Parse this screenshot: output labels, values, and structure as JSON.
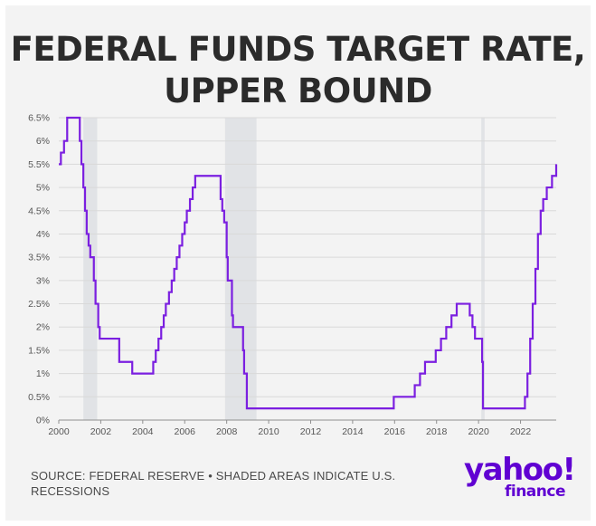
{
  "title_lines": [
    "FEDERAL FUNDS TARGET RATE,",
    "UPPER BOUND"
  ],
  "source_text": "SOURCE: FEDERAL RESERVE • SHADED AREAS INDICATE U.S. RECESSIONS",
  "logo": {
    "word": "yahoo!",
    "sub": "finance"
  },
  "colors": {
    "line": "#7b1fe0",
    "recession": "#e1e3e6",
    "grid": "#d9d9d9",
    "logo": "#6001d2",
    "background": "#f3f3f3"
  },
  "chart_data": {
    "type": "line",
    "title": "FEDERAL FUNDS TARGET RATE, UPPER BOUND",
    "xlabel": "",
    "ylabel": "",
    "xlim": [
      2000,
      2023.7
    ],
    "ylim": [
      0,
      6.5
    ],
    "grid": "horizontal",
    "legend": "none",
    "step": true,
    "x_ticks": [
      2000,
      2002,
      2004,
      2006,
      2008,
      2010,
      2012,
      2014,
      2016,
      2018,
      2020,
      2022
    ],
    "x_tick_labels": [
      "2000",
      "2002",
      "2004",
      "2006",
      "2008",
      "2010",
      "2012",
      "2014",
      "2016",
      "2018",
      "2020",
      "2022"
    ],
    "y_ticks": [
      0,
      0.5,
      1,
      1.5,
      2,
      2.5,
      3,
      3.5,
      4,
      4.5,
      5,
      5.5,
      6,
      6.5
    ],
    "y_tick_labels": [
      "0%",
      "0.5%",
      "1%",
      "1.5%",
      "2%",
      "2.5%",
      "3%",
      "3.5%",
      "4%",
      "4.5%",
      "5%",
      "5.5%",
      "6%",
      "6.5%"
    ],
    "recessions": [
      [
        2001.17,
        2001.83
      ],
      [
        2007.92,
        2009.42
      ],
      [
        2020.13,
        2020.29
      ]
    ],
    "series": [
      {
        "x": [
          2000.0,
          2000.1,
          2000.25,
          2000.4,
          2001.0,
          2001.08,
          2001.17,
          2001.25,
          2001.33,
          2001.42,
          2001.5,
          2001.67,
          2001.75,
          2001.79,
          2001.88,
          2001.95,
          2002.88,
          2003.5,
          2004.5,
          2004.62,
          2004.75,
          2004.88,
          2005.0,
          2005.1,
          2005.25,
          2005.38,
          2005.5,
          2005.62,
          2005.75,
          2005.88,
          2006.0,
          2006.1,
          2006.25,
          2006.38,
          2006.5,
          2007.71,
          2007.79,
          2007.88,
          2008.0,
          2008.05,
          2008.08,
          2008.25,
          2008.3,
          2008.78,
          2008.83,
          2008.96,
          2015.96,
          2016.96,
          2017.21,
          2017.45,
          2017.96,
          2018.21,
          2018.46,
          2018.71,
          2018.96,
          2019.58,
          2019.71,
          2019.83,
          2020.17,
          2020.21,
          2022.21,
          2022.33,
          2022.46,
          2022.58,
          2022.71,
          2022.83,
          2022.96,
          2023.08,
          2023.25,
          2023.5,
          2023.7
        ],
        "y": [
          5.5,
          5.75,
          6.0,
          6.5,
          6.0,
          5.5,
          5.0,
          4.5,
          4.0,
          3.75,
          3.5,
          3.0,
          2.5,
          2.5,
          2.0,
          1.75,
          1.25,
          1.0,
          1.25,
          1.5,
          1.75,
          2.0,
          2.25,
          2.5,
          2.75,
          3.0,
          3.25,
          3.5,
          3.75,
          4.0,
          4.25,
          4.5,
          4.75,
          5.0,
          5.25,
          4.75,
          4.5,
          4.25,
          3.5,
          3.0,
          3.0,
          2.25,
          2.0,
          1.5,
          1.0,
          0.25,
          0.5,
          0.75,
          1.0,
          1.25,
          1.5,
          1.75,
          2.0,
          2.25,
          2.5,
          2.25,
          2.0,
          1.75,
          1.25,
          0.25,
          0.5,
          1.0,
          1.75,
          2.5,
          3.25,
          4.0,
          4.5,
          4.75,
          5.0,
          5.25,
          5.5
        ]
      }
    ]
  }
}
